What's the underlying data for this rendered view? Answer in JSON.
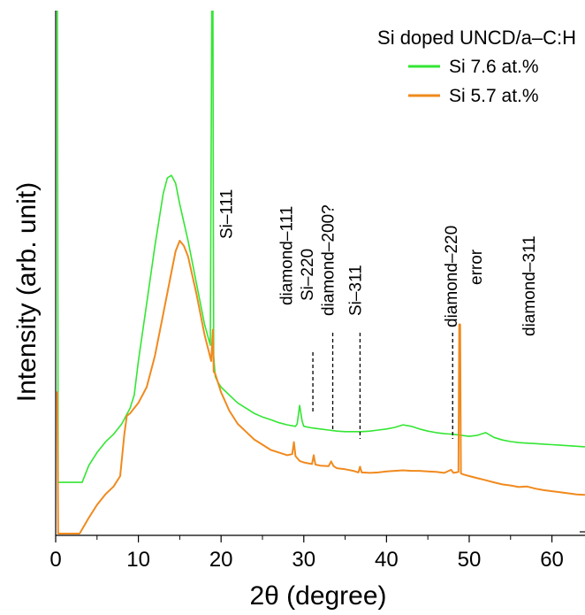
{
  "chart_data": {
    "type": "line",
    "title": "Si doped UNCD/a–C:H",
    "xlabel": "2θ (degree)",
    "ylabel": "Intensity (arb. unit)",
    "xlim": [
      0,
      64
    ],
    "x_ticks": [
      0,
      10,
      20,
      30,
      40,
      50,
      60
    ],
    "x_tick_labels": [
      "0",
      "10",
      "20",
      "30",
      "40",
      "50",
      "60"
    ],
    "y_ticks_visible": false,
    "grid": false,
    "legend_position": "top-right",
    "colors": {
      "green": "#33e633",
      "orange": "#f08a1e",
      "axis": "#000000"
    },
    "series": [
      {
        "name": "Si 7.6 at.%",
        "color": "#33e633",
        "x": [
          0.1,
          0.2,
          0.3,
          3.2,
          4,
          5,
          6,
          7,
          8,
          9,
          9.5,
          10,
          11,
          12,
          13,
          13.5,
          14,
          14.5,
          15,
          16,
          17,
          18,
          18.7,
          18.9,
          19.0,
          19.1,
          19.3,
          19.6,
          20,
          21,
          22,
          23,
          24,
          25,
          26,
          27,
          28,
          29,
          29.2,
          29.5,
          29.8,
          30,
          31,
          32,
          33,
          34,
          35,
          36,
          37,
          38,
          39,
          40,
          41,
          42,
          43,
          44,
          45,
          46,
          47,
          48,
          49,
          50,
          51,
          52,
          53,
          54,
          55,
          56,
          57,
          58,
          59,
          60,
          61,
          62,
          63,
          64
        ],
        "y": [
          100,
          100,
          9.8,
          9.8,
          13,
          15.5,
          17.5,
          19,
          21,
          24,
          26.5,
          33,
          44,
          55,
          65,
          68,
          68.5,
          67,
          63,
          56,
          48,
          40,
          36,
          110,
          110,
          34,
          30,
          29,
          28,
          26.5,
          25,
          24,
          23,
          22.3,
          21.8,
          21.2,
          20.8,
          20.5,
          21,
          24.5,
          21.5,
          20.5,
          20.2,
          20.0,
          19.8,
          19.6,
          19.5,
          19.5,
          19.5,
          19.6,
          19.8,
          20,
          20.3,
          20.8,
          20.5,
          20,
          19.6,
          19.3,
          19.1,
          19,
          18.8,
          18.6,
          18.8,
          19.3,
          18.4,
          17.9,
          17.6,
          17.4,
          17.3,
          17.2,
          17.1,
          17.0,
          16.9,
          16.8,
          16.7,
          16.6
        ]
      },
      {
        "name": "Si 5.7 at.%",
        "color": "#f08a1e",
        "x": [
          0.1,
          0.2,
          0.3,
          2.9,
          4,
          5,
          6,
          7,
          7.8,
          8.3,
          8.6,
          9,
          10,
          11,
          12,
          13,
          14,
          14.5,
          15,
          15.5,
          16,
          17,
          18,
          18.8,
          19.0,
          19.1,
          19.3,
          20,
          21,
          22,
          23,
          24,
          25,
          26,
          27,
          28,
          28.6,
          28.8,
          29,
          29.5,
          30,
          31,
          31.2,
          31.4,
          32,
          33,
          33.3,
          33.6,
          34,
          35,
          36,
          36.6,
          36.8,
          37,
          38,
          39,
          40,
          41,
          42,
          43,
          44,
          45,
          46,
          47,
          47.8,
          48.1,
          48.4,
          48.7,
          48.8,
          48.9,
          49.0,
          49.3,
          50,
          51,
          52,
          53,
          54,
          55,
          56,
          57,
          58,
          59,
          60,
          61,
          62,
          63,
          64
        ],
        "y": [
          27,
          27,
          0,
          0,
          3,
          5.5,
          7.5,
          9,
          11,
          19,
          22.5,
          23,
          25,
          28,
          34,
          42,
          50,
          54,
          56,
          55,
          53,
          46,
          38,
          33,
          39,
          31,
          30.5,
          27,
          23.5,
          21,
          19.5,
          18,
          17,
          16,
          15.5,
          15,
          15.2,
          17.5,
          14.8,
          13.9,
          13.6,
          13.3,
          15,
          13.2,
          13.0,
          12.9,
          13.8,
          12.9,
          12.5,
          12.3,
          12.0,
          11.7,
          12.8,
          11.7,
          11.6,
          11.7,
          11.9,
          12.0,
          12.1,
          12.0,
          12.0,
          11.9,
          11.8,
          11.6,
          12.2,
          11.6,
          11.7,
          11.8,
          40,
          40,
          11.5,
          11.3,
          11.0,
          10.6,
          10.2,
          9.8,
          9.4,
          9.2,
          8.9,
          9.0,
          8.6,
          8.3,
          8.1,
          7.9,
          7.7,
          7.5,
          7.4
        ]
      }
    ],
    "peak_markers": [
      {
        "label": "Si–220",
        "x": 31.1,
        "dashed": true
      },
      {
        "label": "diamond–200?",
        "x": 33.5,
        "dashed": true
      },
      {
        "label": "Si–311",
        "x": 36.8,
        "dashed": true
      },
      {
        "label": "diamond–220",
        "x": 48.0,
        "dashed": true
      }
    ],
    "annotations": [
      {
        "label": "Si–111",
        "x": 21.3
      },
      {
        "label": "diamond–111",
        "x": 28.6
      },
      {
        "label": "Si–220",
        "x": 31.1
      },
      {
        "label": "diamond–200?",
        "x": 33.6
      },
      {
        "label": "Si–311",
        "x": 36.9
      },
      {
        "label": "diamond–220",
        "x": 48.5
      },
      {
        "label": "error",
        "x": 51.5
      },
      {
        "label": "diamond–311",
        "x": 57.9
      }
    ]
  }
}
